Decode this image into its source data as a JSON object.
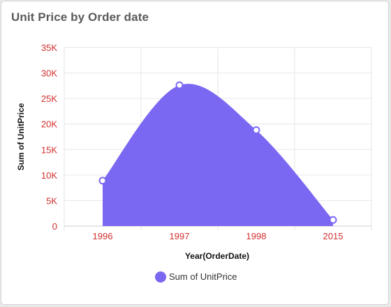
{
  "widget": {
    "title": "Unit Price by Order date"
  },
  "chart_data": {
    "type": "area",
    "title": "Unit Price by Order date",
    "xlabel": "Year(OrderDate)",
    "ylabel": "Sum of UnitPrice",
    "categories": [
      "1996",
      "1997",
      "1998",
      "2015"
    ],
    "series": [
      {
        "name": "Sum of UnitPrice",
        "values": [
          8900,
          27600,
          18800,
          1200
        ]
      }
    ],
    "ylim": [
      0,
      35000
    ],
    "yticks": [
      {
        "value": 0,
        "label": "0"
      },
      {
        "value": 5000,
        "label": "5K"
      },
      {
        "value": 10000,
        "label": "10K"
      },
      {
        "value": 15000,
        "label": "15K"
      },
      {
        "value": 20000,
        "label": "20K"
      },
      {
        "value": 25000,
        "label": "25K"
      },
      {
        "value": 30000,
        "label": "30K"
      },
      {
        "value": 35000,
        "label": "35K"
      }
    ],
    "grid": true,
    "legend": "bottom",
    "colors": {
      "series": "#7b68f2",
      "marker_fill": "#ffffff",
      "tick_label": "#d32f2f"
    }
  }
}
